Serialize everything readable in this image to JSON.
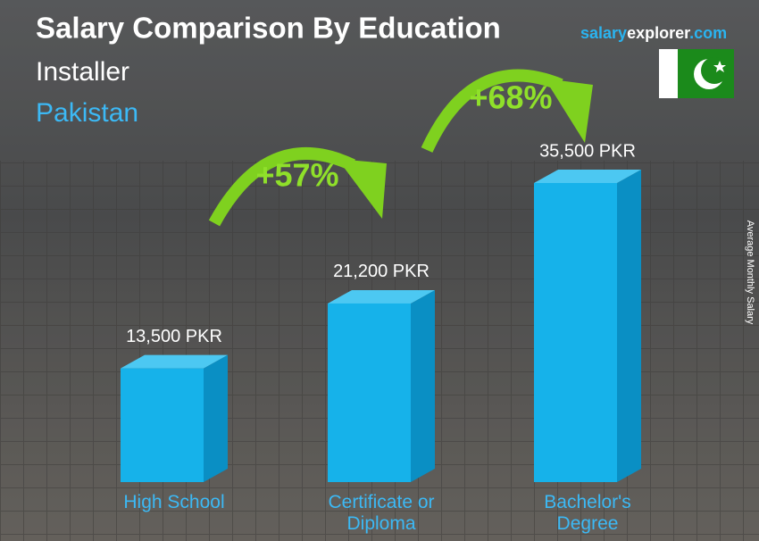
{
  "chart_data": {
    "type": "bar",
    "title": "Salary Comparison By Education",
    "subtitle": [
      "Installer",
      "Pakistan"
    ],
    "brand": [
      "salary",
      "explorer",
      ".com"
    ],
    "y_label": "Average Monthly Salary",
    "categories": [
      "High School",
      "Certificate or Diploma",
      "Bachelor's Degree"
    ],
    "values": [
      13500,
      21200,
      35500
    ],
    "value_labels": [
      "13,500 PKR",
      "21,200 PKR",
      "35,500 PKR"
    ],
    "color": "#16b2ea",
    "annotations": [
      "+57%",
      "+68%"
    ]
  }
}
